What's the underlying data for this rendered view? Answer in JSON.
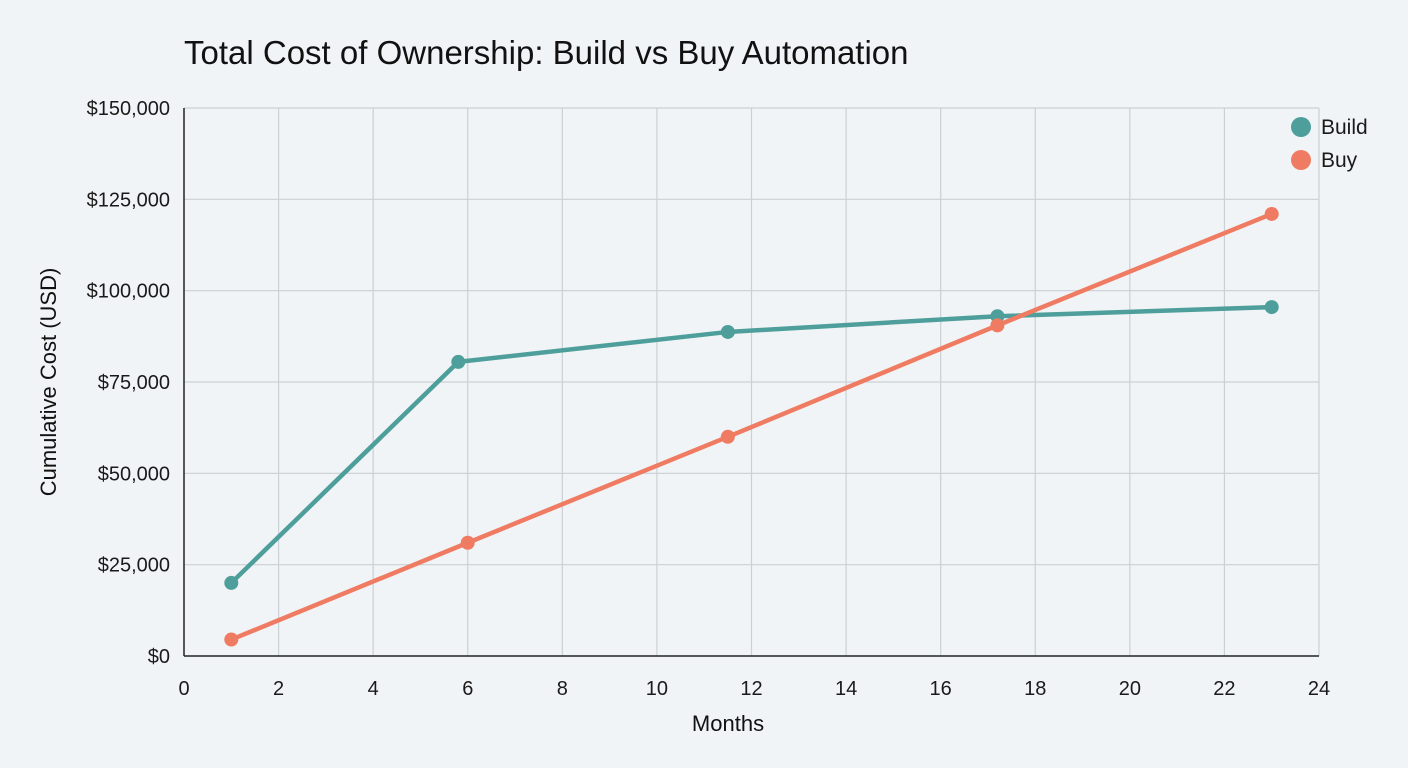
{
  "chart_data": {
    "type": "line",
    "title": "Total Cost of Ownership: Build vs Buy Automation",
    "xlabel": "Months",
    "ylabel": "Cumulative Cost (USD)",
    "xlim": [
      0,
      24
    ],
    "ylim": [
      0,
      150000
    ],
    "x_ticks": [
      "0",
      "2",
      "4",
      "6",
      "8",
      "10",
      "12",
      "14",
      "16",
      "18",
      "20",
      "22",
      "24"
    ],
    "y_ticks": [
      "$0",
      "$25,000",
      "$50,000",
      "$75,000",
      "$100,000",
      "$125,000",
      "$150,000"
    ],
    "grid": true,
    "legend_position": "top-right",
    "series": [
      {
        "name": "Build",
        "color": "#4e9f9b",
        "x": [
          1,
          5.8,
          11.5,
          17.2,
          23
        ],
        "y": [
          20000,
          80500,
          88700,
          93000,
          95500
        ]
      },
      {
        "name": "Buy",
        "color": "#ef7c62",
        "x": [
          1,
          6,
          11.5,
          17.2,
          23
        ],
        "y": [
          4500,
          31000,
          60000,
          90500,
          121000
        ]
      }
    ]
  }
}
